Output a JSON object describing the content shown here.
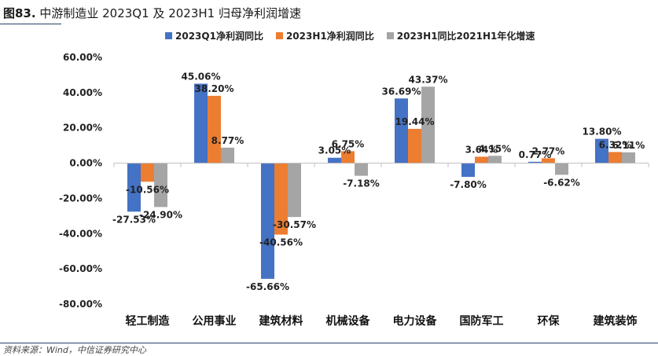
{
  "figure": {
    "number": "图83.",
    "title": "中游制造业 2023Q1 及 2023H1 归母净利润增速",
    "source": "资料来源：Wind，中信证券研究中心"
  },
  "colors": {
    "series": [
      "#4472C4",
      "#ED7D31",
      "#A5A5A5"
    ]
  },
  "chart_data": {
    "type": "bar",
    "categories": [
      "轻工制造",
      "公用事业",
      "建筑材料",
      "机械设备",
      "电力设备",
      "国防军工",
      "环保",
      "建筑装饰"
    ],
    "series": [
      {
        "name": "2023Q1净利润同比",
        "values": [
          -27.53,
          45.06,
          -65.66,
          3.05,
          36.69,
          -7.8,
          0.77,
          13.8
        ],
        "labels": [
          "-27.53%",
          "45.06%",
          "-65.66%",
          "3.05%",
          "36.69%",
          "-7.80%",
          "0.77%",
          "13.80%"
        ]
      },
      {
        "name": "2023H1净利润同比",
        "values": [
          -10.56,
          38.2,
          -40.56,
          6.75,
          19.44,
          3.64,
          2.77,
          6.32
        ],
        "labels": [
          "-10.56%",
          "38.20%",
          "-40.56%",
          "6.75%",
          "19.44%",
          "3.64%",
          "2.77%",
          "6.32%"
        ]
      },
      {
        "name": "2023H1同比2021H1年化增速",
        "values": [
          -24.9,
          8.77,
          -30.57,
          -7.18,
          43.37,
          4.15,
          -6.62,
          6.11
        ],
        "labels": [
          "-24.90%",
          "8.77%",
          "-30.57%",
          "-7.18%",
          "43.37%",
          "4.15%",
          "-6.62%",
          "6.11%"
        ]
      }
    ],
    "yticks": [
      "60.00%",
      "40.00%",
      "20.00%",
      "0.00%",
      "-20.00%",
      "-40.00%",
      "-60.00%",
      "-80.00%"
    ],
    "ylim": [
      -80,
      60
    ],
    "legend_position": "top",
    "grid": false
  }
}
